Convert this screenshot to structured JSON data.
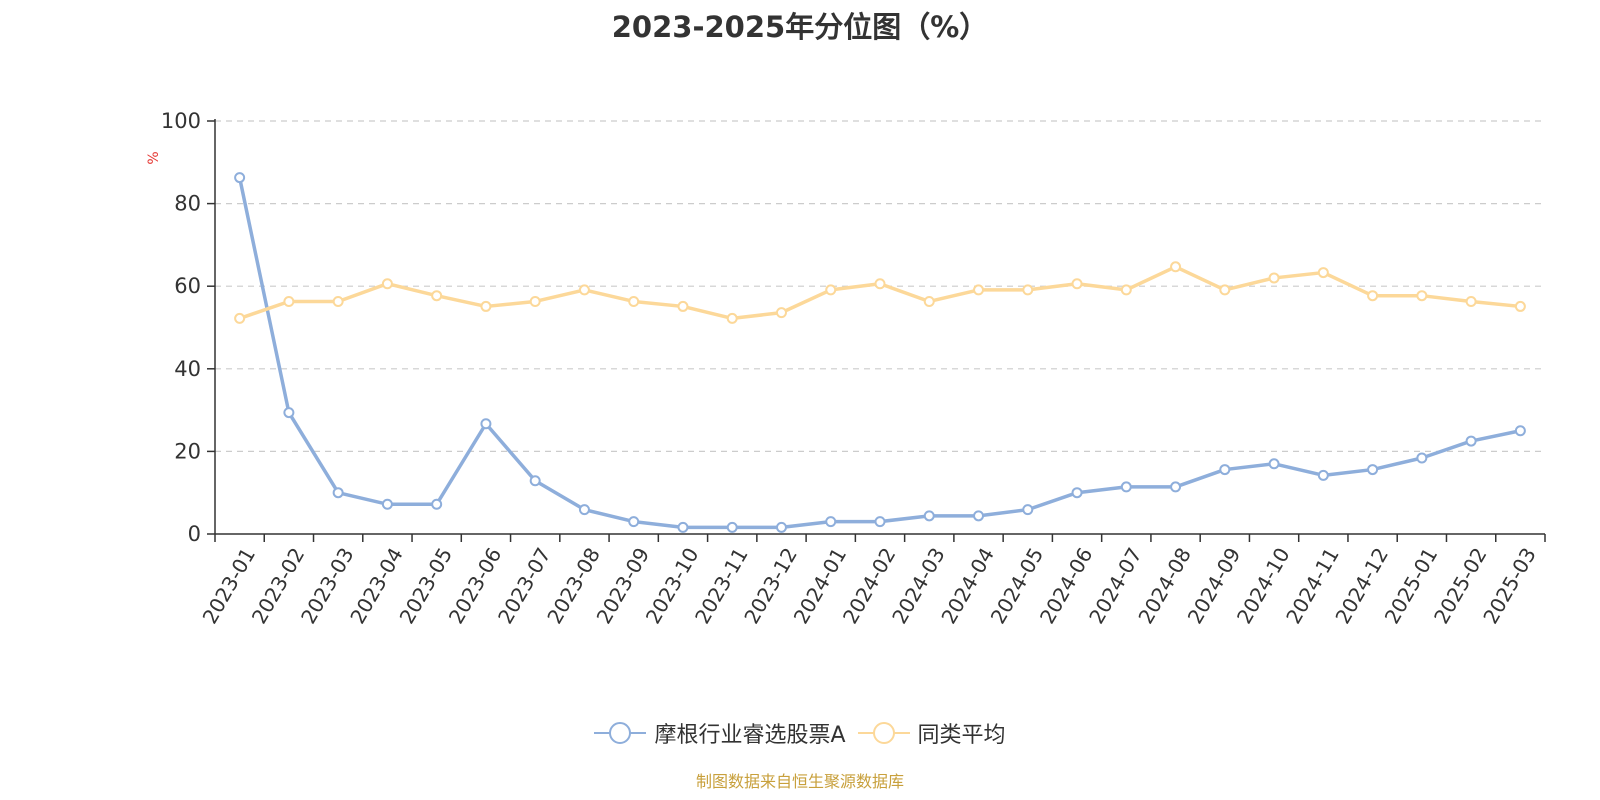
{
  "chart_data": {
    "type": "line",
    "title": "2023-2025年分位图（%）",
    "ylabel": "%",
    "ylim": [
      0,
      100
    ],
    "yticks": [
      0,
      20,
      40,
      60,
      80,
      100
    ],
    "grid": true,
    "legend_position": "bottom",
    "categories": [
      "2023-01",
      "2023-02",
      "2023-03",
      "2023-04",
      "2023-05",
      "2023-06",
      "2023-07",
      "2023-08",
      "2023-09",
      "2023-10",
      "2023-11",
      "2023-12",
      "2024-01",
      "2024-02",
      "2024-03",
      "2024-04",
      "2024-05",
      "2024-06",
      "2024-07",
      "2024-08",
      "2024-09",
      "2024-10",
      "2024-11",
      "2024-12",
      "2025-01",
      "2025-02",
      "2025-03"
    ],
    "series": [
      {
        "name": "摩根行业睿选股票A",
        "color": "#8eaedb",
        "values": [
          86.3,
          29.4,
          10.0,
          7.2,
          7.2,
          26.7,
          12.9,
          5.9,
          3.0,
          1.6,
          1.6,
          1.6,
          3.0,
          3.0,
          4.4,
          4.4,
          5.9,
          10.0,
          11.4,
          11.4,
          15.6,
          17.0,
          14.2,
          15.6,
          18.4,
          22.5,
          25.0
        ]
      },
      {
        "name": "同类平均",
        "color": "#fcd899",
        "values": [
          52.2,
          56.3,
          56.3,
          60.6,
          57.7,
          55.1,
          56.3,
          59.1,
          56.3,
          55.1,
          52.2,
          53.6,
          59.1,
          60.6,
          56.3,
          59.1,
          59.1,
          60.6,
          59.1,
          64.7,
          59.1,
          62.0,
          63.3,
          57.7,
          57.7,
          56.3,
          55.1
        ]
      }
    ]
  },
  "footer": {
    "source": "制图数据来自恒生聚源数据库"
  }
}
